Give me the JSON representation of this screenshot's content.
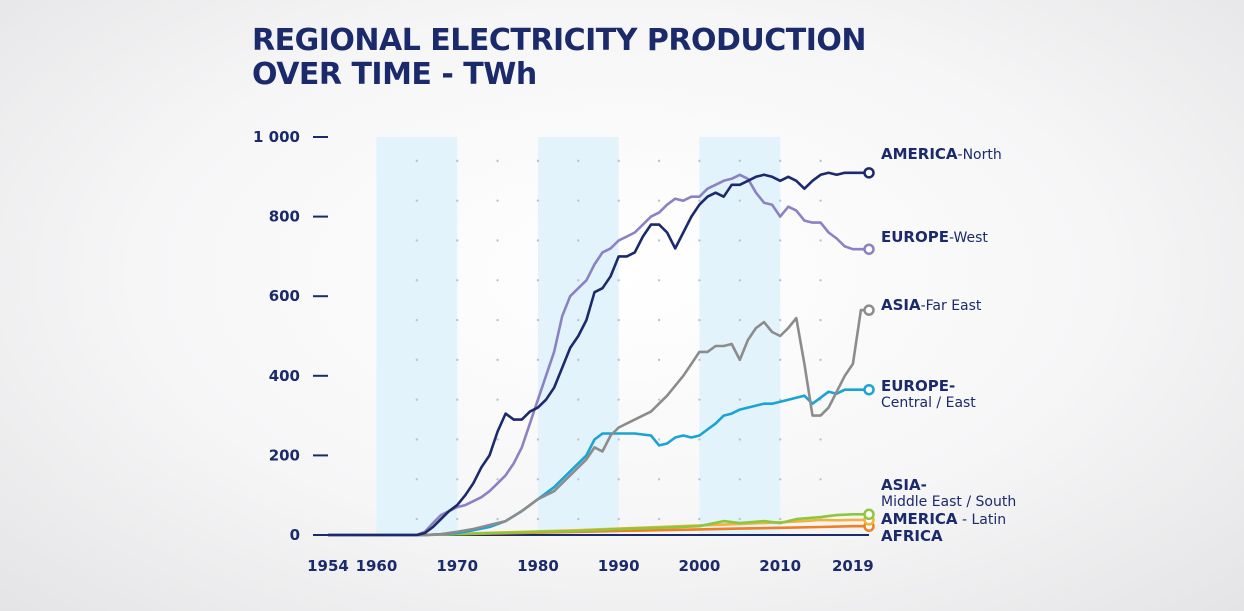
{
  "title_line1": "REGIONAL ELECTRICITY PRODUCTION",
  "title_line2": "OVER TIME - TWh",
  "colors": {
    "navy": "#1b2a6b",
    "shade": "#e3f3fb",
    "america_north": "#1b2a6b",
    "europe_west": "#8a82c2",
    "asia_far_east": "#8c8c8c",
    "europe_central_east": "#1aa3d5",
    "asia_middle_east_south": "#8dc63f",
    "america_latin": "#f0b43c",
    "africa": "#f07e22"
  },
  "labels": {
    "america_north": {
      "region": "AMERICA",
      "detail": "-North"
    },
    "europe_west": {
      "region": "EUROPE",
      "detail": "-West"
    },
    "asia_far_east": {
      "region": "ASIA",
      "detail": "-Far East"
    },
    "europe_central_east": {
      "region": "EUROPE",
      "dash": "-",
      "detail": "Central / East"
    },
    "asia_middle_east_south": {
      "region": "ASIA",
      "dash": "-",
      "detail": "Middle East / South"
    },
    "america_latin": {
      "region": "AMERICA",
      "detail": " - Latin"
    },
    "africa": {
      "region": "AFRICA",
      "detail": ""
    }
  },
  "chart_data": {
    "type": "line",
    "title": "REGIONAL ELECTRICITY PRODUCTION OVER TIME - TWh",
    "xlabel": "",
    "ylabel": "",
    "xlim": [
      1954,
      2021
    ],
    "ylim": [
      0,
      1000
    ],
    "x_ticks": [
      1954,
      1960,
      1970,
      1980,
      1990,
      2000,
      2010,
      2019
    ],
    "y_ticks": [
      0,
      200,
      400,
      600,
      800,
      1000
    ],
    "y_tick_labels": [
      "0",
      "200",
      "400",
      "600",
      "800",
      "1 000"
    ],
    "shaded_decades": [
      [
        1960,
        1970
      ],
      [
        1980,
        1990
      ],
      [
        2000,
        2010
      ]
    ],
    "grid": "dotted",
    "series": [
      {
        "name": "AMERICA-North",
        "key": "america_north",
        "points": [
          [
            1954,
            0
          ],
          [
            1965,
            0
          ],
          [
            1966,
            5
          ],
          [
            1967,
            20
          ],
          [
            1968,
            40
          ],
          [
            1969,
            60
          ],
          [
            1970,
            75
          ],
          [
            1971,
            100
          ],
          [
            1972,
            130
          ],
          [
            1973,
            170
          ],
          [
            1974,
            200
          ],
          [
            1975,
            260
          ],
          [
            1976,
            305
          ],
          [
            1977,
            290
          ],
          [
            1978,
            290
          ],
          [
            1979,
            310
          ],
          [
            1980,
            320
          ],
          [
            1981,
            340
          ],
          [
            1982,
            370
          ],
          [
            1983,
            420
          ],
          [
            1984,
            470
          ],
          [
            1985,
            500
          ],
          [
            1986,
            540
          ],
          [
            1987,
            610
          ],
          [
            1988,
            620
          ],
          [
            1989,
            650
          ],
          [
            1990,
            700
          ],
          [
            1991,
            700
          ],
          [
            1992,
            710
          ],
          [
            1993,
            750
          ],
          [
            1994,
            780
          ],
          [
            1995,
            780
          ],
          [
            1996,
            760
          ],
          [
            1997,
            720
          ],
          [
            1998,
            760
          ],
          [
            1999,
            800
          ],
          [
            2000,
            830
          ],
          [
            2001,
            850
          ],
          [
            2002,
            860
          ],
          [
            2003,
            850
          ],
          [
            2004,
            880
          ],
          [
            2005,
            880
          ],
          [
            2006,
            890
          ],
          [
            2007,
            900
          ],
          [
            2008,
            905
          ],
          [
            2009,
            900
          ],
          [
            2010,
            890
          ],
          [
            2011,
            900
          ],
          [
            2012,
            890
          ],
          [
            2013,
            870
          ],
          [
            2014,
            890
          ],
          [
            2015,
            905
          ],
          [
            2016,
            910
          ],
          [
            2017,
            905
          ],
          [
            2018,
            910
          ],
          [
            2019,
            910
          ],
          [
            2021,
            910
          ]
        ]
      },
      {
        "name": "EUROPE-West",
        "key": "europe_west",
        "points": [
          [
            1954,
            0
          ],
          [
            1965,
            0
          ],
          [
            1966,
            8
          ],
          [
            1967,
            30
          ],
          [
            1968,
            50
          ],
          [
            1969,
            60
          ],
          [
            1970,
            70
          ],
          [
            1971,
            75
          ],
          [
            1972,
            85
          ],
          [
            1973,
            95
          ],
          [
            1974,
            110
          ],
          [
            1975,
            130
          ],
          [
            1976,
            150
          ],
          [
            1977,
            180
          ],
          [
            1978,
            220
          ],
          [
            1979,
            280
          ],
          [
            1980,
            340
          ],
          [
            1981,
            400
          ],
          [
            1982,
            460
          ],
          [
            1983,
            550
          ],
          [
            1984,
            600
          ],
          [
            1985,
            620
          ],
          [
            1986,
            640
          ],
          [
            1987,
            680
          ],
          [
            1988,
            710
          ],
          [
            1989,
            720
          ],
          [
            1990,
            740
          ],
          [
            1991,
            750
          ],
          [
            1992,
            760
          ],
          [
            1993,
            780
          ],
          [
            1994,
            800
          ],
          [
            1995,
            810
          ],
          [
            1996,
            830
          ],
          [
            1997,
            845
          ],
          [
            1998,
            840
          ],
          [
            1999,
            850
          ],
          [
            2000,
            850
          ],
          [
            2001,
            870
          ],
          [
            2002,
            880
          ],
          [
            2003,
            890
          ],
          [
            2004,
            895
          ],
          [
            2005,
            905
          ],
          [
            2006,
            895
          ],
          [
            2007,
            860
          ],
          [
            2008,
            835
          ],
          [
            2009,
            830
          ],
          [
            2010,
            800
          ],
          [
            2011,
            825
          ],
          [
            2012,
            815
          ],
          [
            2013,
            790
          ],
          [
            2014,
            785
          ],
          [
            2015,
            785
          ],
          [
            2016,
            760
          ],
          [
            2017,
            745
          ],
          [
            2018,
            725
          ],
          [
            2019,
            718
          ],
          [
            2021,
            718
          ]
        ]
      },
      {
        "name": "ASIA-Far East",
        "key": "asia_far_east",
        "points": [
          [
            1954,
            0
          ],
          [
            1966,
            0
          ],
          [
            1968,
            2
          ],
          [
            1970,
            8
          ],
          [
            1972,
            15
          ],
          [
            1974,
            25
          ],
          [
            1976,
            35
          ],
          [
            1978,
            60
          ],
          [
            1980,
            90
          ],
          [
            1982,
            110
          ],
          [
            1984,
            150
          ],
          [
            1986,
            190
          ],
          [
            1987,
            220
          ],
          [
            1988,
            210
          ],
          [
            1989,
            250
          ],
          [
            1990,
            270
          ],
          [
            1992,
            290
          ],
          [
            1994,
            310
          ],
          [
            1996,
            350
          ],
          [
            1998,
            400
          ],
          [
            1999,
            430
          ],
          [
            2000,
            460
          ],
          [
            2001,
            460
          ],
          [
            2002,
            475
          ],
          [
            2003,
            475
          ],
          [
            2004,
            480
          ],
          [
            2005,
            440
          ],
          [
            2006,
            490
          ],
          [
            2007,
            520
          ],
          [
            2008,
            535
          ],
          [
            2009,
            510
          ],
          [
            2010,
            500
          ],
          [
            2011,
            520
          ],
          [
            2012,
            545
          ],
          [
            2013,
            430
          ],
          [
            2014,
            300
          ],
          [
            2015,
            300
          ],
          [
            2016,
            320
          ],
          [
            2017,
            360
          ],
          [
            2018,
            400
          ],
          [
            2019,
            430
          ],
          [
            2020,
            565
          ],
          [
            2021,
            565
          ]
        ]
      },
      {
        "name": "EUROPE-Central / East",
        "key": "europe_central_east",
        "points": [
          [
            1954,
            0
          ],
          [
            1966,
            0
          ],
          [
            1968,
            2
          ],
          [
            1970,
            5
          ],
          [
            1972,
            12
          ],
          [
            1974,
            20
          ],
          [
            1976,
            35
          ],
          [
            1978,
            60
          ],
          [
            1980,
            90
          ],
          [
            1982,
            120
          ],
          [
            1984,
            160
          ],
          [
            1986,
            200
          ],
          [
            1987,
            240
          ],
          [
            1988,
            255
          ],
          [
            1990,
            255
          ],
          [
            1992,
            255
          ],
          [
            1994,
            250
          ],
          [
            1995,
            225
          ],
          [
            1996,
            230
          ],
          [
            1997,
            245
          ],
          [
            1998,
            250
          ],
          [
            1999,
            245
          ],
          [
            2000,
            250
          ],
          [
            2001,
            265
          ],
          [
            2002,
            280
          ],
          [
            2003,
            300
          ],
          [
            2004,
            305
          ],
          [
            2005,
            315
          ],
          [
            2006,
            320
          ],
          [
            2007,
            325
          ],
          [
            2008,
            330
          ],
          [
            2009,
            330
          ],
          [
            2010,
            335
          ],
          [
            2011,
            340
          ],
          [
            2012,
            345
          ],
          [
            2013,
            350
          ],
          [
            2014,
            330
          ],
          [
            2015,
            345
          ],
          [
            2016,
            360
          ],
          [
            2017,
            355
          ],
          [
            2018,
            365
          ],
          [
            2019,
            365
          ],
          [
            2021,
            365
          ]
        ]
      },
      {
        "name": "ASIA-Middle East / South",
        "key": "asia_middle_east_south",
        "points": [
          [
            1954,
            0
          ],
          [
            1966,
            0
          ],
          [
            1970,
            2
          ],
          [
            1975,
            5
          ],
          [
            1980,
            8
          ],
          [
            1985,
            10
          ],
          [
            1990,
            15
          ],
          [
            1995,
            18
          ],
          [
            2000,
            22
          ],
          [
            2003,
            35
          ],
          [
            2005,
            30
          ],
          [
            2008,
            35
          ],
          [
            2010,
            30
          ],
          [
            2012,
            40
          ],
          [
            2015,
            45
          ],
          [
            2017,
            50
          ],
          [
            2019,
            52
          ],
          [
            2021,
            52
          ]
        ]
      },
      {
        "name": "AMERICA - Latin",
        "key": "america_latin",
        "points": [
          [
            1954,
            0
          ],
          [
            1966,
            0
          ],
          [
            1970,
            3
          ],
          [
            1975,
            6
          ],
          [
            1980,
            9
          ],
          [
            1985,
            12
          ],
          [
            1990,
            16
          ],
          [
            1995,
            20
          ],
          [
            2000,
            24
          ],
          [
            2005,
            28
          ],
          [
            2010,
            32
          ],
          [
            2013,
            35
          ],
          [
            2015,
            38
          ],
          [
            2017,
            37
          ],
          [
            2019,
            38
          ],
          [
            2021,
            38
          ]
        ]
      },
      {
        "name": "AFRICA",
        "key": "africa",
        "points": [
          [
            1954,
            0
          ],
          [
            1966,
            0
          ],
          [
            1970,
            2
          ],
          [
            1975,
            4
          ],
          [
            1980,
            6
          ],
          [
            1985,
            8
          ],
          [
            1990,
            10
          ],
          [
            1995,
            12
          ],
          [
            2000,
            14
          ],
          [
            2005,
            16
          ],
          [
            2010,
            18
          ],
          [
            2015,
            20
          ],
          [
            2019,
            22
          ],
          [
            2021,
            22
          ]
        ]
      }
    ]
  }
}
